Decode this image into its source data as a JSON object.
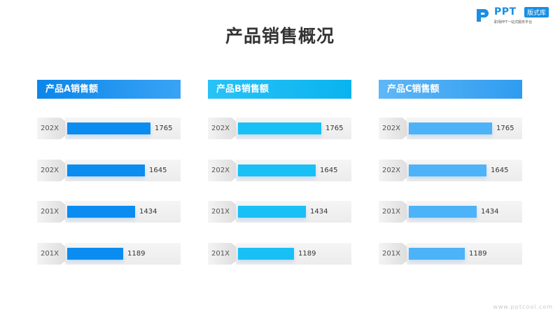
{
  "logo": {
    "brand": "PPT",
    "badge": "版式库",
    "slogan": "职场PPT一站式服务平台"
  },
  "title": "产品销售概况",
  "footer": "www.pptcool.com",
  "colors": {
    "panel_a_header": [
      "#0b86ea",
      "#3aa3f5"
    ],
    "panel_b_header": [
      "#29c2f7",
      "#0ab3ef"
    ],
    "panel_c_header": [
      "#5fb7f6",
      "#2f9cf0"
    ],
    "bar_a": "#0b8cf0",
    "bar_b": "#18c0f6",
    "bar_c": "#4cb3f8"
  },
  "chart_data": [
    {
      "type": "bar",
      "orientation": "horizontal",
      "title": "产品A销售额",
      "categories": [
        "202X",
        "202X",
        "201X",
        "201X"
      ],
      "values": [
        1765,
        1645,
        1434,
        1189
      ],
      "xlim": [
        0,
        2400
      ]
    },
    {
      "type": "bar",
      "orientation": "horizontal",
      "title": "产品B销售额",
      "categories": [
        "202X",
        "202X",
        "201X",
        "201X"
      ],
      "values": [
        1765,
        1645,
        1434,
        1189
      ],
      "xlim": [
        0,
        2400
      ]
    },
    {
      "type": "bar",
      "orientation": "horizontal",
      "title": "产品C销售额",
      "categories": [
        "202X",
        "202X",
        "201X",
        "201X"
      ],
      "values": [
        1765,
        1645,
        1434,
        1189
      ],
      "xlim": [
        0,
        2400
      ]
    }
  ]
}
